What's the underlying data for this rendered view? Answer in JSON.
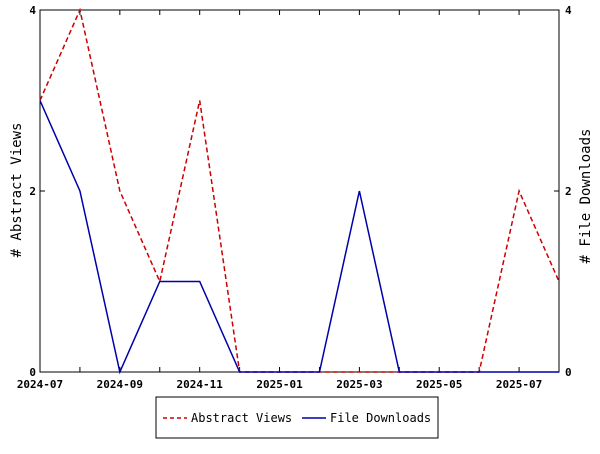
{
  "chart_data": {
    "type": "line",
    "x": [
      "2024-07",
      "2024-08",
      "2024-09",
      "2024-10",
      "2024-11",
      "2024-12",
      "2025-01",
      "2025-02",
      "2025-03",
      "2025-04",
      "2025-05",
      "2025-06",
      "2025-07",
      "2025-08"
    ],
    "x_tick_labels": [
      "2024-07",
      "2024-09",
      "2024-11",
      "2025-01",
      "2025-03",
      "2025-05",
      "2025-07"
    ],
    "series": [
      {
        "name": "Abstract Views",
        "values": [
          3,
          4,
          2,
          1,
          3,
          0,
          0,
          0,
          0,
          0,
          0,
          0,
          2,
          1
        ],
        "color": "#cc0000",
        "style": "dashed",
        "axis": "left"
      },
      {
        "name": "File Downloads",
        "values": [
          3,
          2,
          0,
          1,
          1,
          0,
          0,
          0,
          2,
          0,
          0,
          0,
          0,
          0
        ],
        "color": "#0000aa",
        "style": "solid",
        "axis": "right"
      }
    ],
    "ylabel": "# Abstract Views",
    "y2label": "# File Downloads",
    "ylim": [
      0,
      4
    ],
    "y2lim": [
      0,
      4
    ],
    "y_ticks": [
      0,
      2,
      4
    ],
    "y2_ticks": [
      0,
      2,
      4
    ],
    "grid": false,
    "legend_position": "bottom"
  }
}
